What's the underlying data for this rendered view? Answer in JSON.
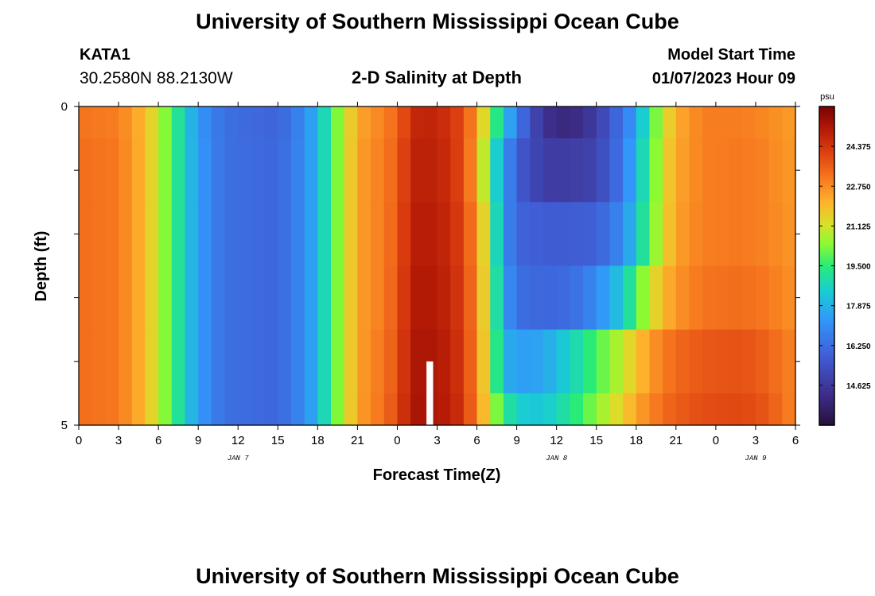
{
  "page": {
    "title": "University of Southern Mississippi Ocean Cube",
    "station": "KATA1",
    "coords": "30.2580N  88.2130W",
    "subtitle": "2-D Salinity at Depth",
    "model_start_label": "Model Start Time",
    "model_start_value": "01/07/2023 Hour 09",
    "footer_title": "University of Southern Mississippi Ocean Cube"
  },
  "colors": {
    "background": "#ffffff",
    "text": "#000000",
    "marker": "#ffffff"
  },
  "chart_data": {
    "type": "heatmap",
    "title": "2-D Salinity at Depth",
    "xlabel": "Forecast Time(Z)",
    "ylabel": "Depth (ft)",
    "x_unit": "hours since JAN 7 00Z",
    "xlim": [
      0,
      54
    ],
    "ylim": [
      0,
      5
    ],
    "y_reversed": true,
    "x_ticks": [
      {
        "x": 0,
        "label": "0"
      },
      {
        "x": 3,
        "label": "3"
      },
      {
        "x": 6,
        "label": "6"
      },
      {
        "x": 9,
        "label": "9"
      },
      {
        "x": 12,
        "label": "12"
      },
      {
        "x": 15,
        "label": "15"
      },
      {
        "x": 18,
        "label": "18"
      },
      {
        "x": 21,
        "label": "21"
      },
      {
        "x": 24,
        "label": "0"
      },
      {
        "x": 27,
        "label": "3"
      },
      {
        "x": 30,
        "label": "6"
      },
      {
        "x": 33,
        "label": "9"
      },
      {
        "x": 36,
        "label": "12"
      },
      {
        "x": 39,
        "label": "15"
      },
      {
        "x": 42,
        "label": "18"
      },
      {
        "x": 45,
        "label": "21"
      },
      {
        "x": 48,
        "label": "0"
      },
      {
        "x": 51,
        "label": "3"
      },
      {
        "x": 54,
        "label": "6"
      }
    ],
    "y_ticks": [
      {
        "y": 0,
        "label": "0"
      },
      {
        "y": 5,
        "label": "5"
      }
    ],
    "date_labels": [
      {
        "x": 12,
        "label": "JAN 7"
      },
      {
        "x": 36,
        "label": "JAN 8"
      },
      {
        "x": 51,
        "label": "JAN 9"
      }
    ],
    "colorbar": {
      "unit": "psu",
      "vmin": 13.0,
      "vmax": 26.0,
      "ticks": [
        "24.375",
        "22.750",
        "21.125",
        "19.500",
        "17.875",
        "16.250",
        "14.625"
      ],
      "tick_values": [
        24.375,
        22.75,
        21.125,
        19.5,
        17.875,
        16.25,
        14.625
      ]
    },
    "layers": [
      {
        "depth_top": 0.0,
        "depth_bottom": 0.5,
        "keyframes": [
          [
            0,
            23.2
          ],
          [
            3,
            23.0
          ],
          [
            5,
            22.0
          ],
          [
            7,
            19.8
          ],
          [
            8,
            18.5
          ],
          [
            9,
            17.3
          ],
          [
            11,
            16.3
          ],
          [
            15,
            16.0
          ],
          [
            17,
            17.0
          ],
          [
            18,
            18.0
          ],
          [
            19,
            19.6
          ],
          [
            20,
            21.0
          ],
          [
            21,
            22.3
          ],
          [
            23,
            23.0
          ],
          [
            24,
            23.4
          ],
          [
            25,
            24.6
          ],
          [
            26,
            24.9
          ],
          [
            28,
            24.5
          ],
          [
            29,
            23.8
          ],
          [
            30,
            22.6
          ],
          [
            31,
            20.2
          ],
          [
            32,
            18.5
          ],
          [
            33,
            16.6
          ],
          [
            35,
            14.4
          ],
          [
            37,
            14.0
          ],
          [
            39,
            14.8
          ],
          [
            41,
            16.5
          ],
          [
            42,
            17.5
          ],
          [
            43,
            19.5
          ],
          [
            44,
            21.0
          ],
          [
            45,
            22.2
          ],
          [
            47,
            23.0
          ],
          [
            50,
            23.0
          ],
          [
            52,
            22.8
          ],
          [
            53,
            22.6
          ],
          [
            54,
            22.5
          ]
        ]
      },
      {
        "depth_top": 0.5,
        "depth_bottom": 1.5,
        "keyframes": [
          [
            0,
            23.3
          ],
          [
            3,
            23.1
          ],
          [
            5,
            22.0
          ],
          [
            7,
            19.8
          ],
          [
            8,
            18.5
          ],
          [
            9,
            17.4
          ],
          [
            11,
            16.3
          ],
          [
            15,
            16.1
          ],
          [
            17,
            17.0
          ],
          [
            18,
            18.0
          ],
          [
            19,
            19.6
          ],
          [
            20,
            21.0
          ],
          [
            21,
            22.4
          ],
          [
            23,
            23.1
          ],
          [
            24,
            23.5
          ],
          [
            25,
            24.8
          ],
          [
            26,
            25.0
          ],
          [
            28,
            24.6
          ],
          [
            29,
            23.8
          ],
          [
            30,
            22.4
          ],
          [
            31,
            19.5
          ],
          [
            32,
            17.5
          ],
          [
            33,
            15.8
          ],
          [
            35,
            14.8
          ],
          [
            37,
            14.8
          ],
          [
            39,
            15.0
          ],
          [
            41,
            16.6
          ],
          [
            42,
            18.0
          ],
          [
            43,
            19.6
          ],
          [
            44,
            21.2
          ],
          [
            45,
            22.3
          ],
          [
            47,
            23.0
          ],
          [
            50,
            23.1
          ],
          [
            52,
            22.9
          ],
          [
            53,
            22.6
          ],
          [
            54,
            22.6
          ]
        ]
      },
      {
        "depth_top": 1.5,
        "depth_bottom": 2.5,
        "keyframes": [
          [
            0,
            23.3
          ],
          [
            3,
            23.1
          ],
          [
            5,
            22.0
          ],
          [
            7,
            19.8
          ],
          [
            8,
            18.5
          ],
          [
            9,
            17.4
          ],
          [
            11,
            16.3
          ],
          [
            15,
            16.1
          ],
          [
            17,
            17.0
          ],
          [
            18,
            18.0
          ],
          [
            19,
            19.6
          ],
          [
            20,
            21.0
          ],
          [
            21,
            22.4
          ],
          [
            23,
            23.1
          ],
          [
            24,
            23.6
          ],
          [
            25,
            24.9
          ],
          [
            26,
            25.1
          ],
          [
            28,
            24.7
          ],
          [
            29,
            24.0
          ],
          [
            30,
            22.7
          ],
          [
            31,
            20.3
          ],
          [
            32,
            17.2
          ],
          [
            33,
            16.0
          ],
          [
            35,
            15.8
          ],
          [
            37,
            15.8
          ],
          [
            39,
            15.9
          ],
          [
            41,
            17.0
          ],
          [
            42,
            18.4
          ],
          [
            43,
            19.8
          ],
          [
            44,
            21.3
          ],
          [
            45,
            22.4
          ],
          [
            47,
            23.0
          ],
          [
            50,
            23.1
          ],
          [
            52,
            22.9
          ],
          [
            53,
            22.7
          ],
          [
            54,
            22.6
          ]
        ]
      },
      {
        "depth_top": 2.5,
        "depth_bottom": 3.5,
        "keyframes": [
          [
            0,
            23.3
          ],
          [
            3,
            23.1
          ],
          [
            5,
            22.0
          ],
          [
            7,
            19.8
          ],
          [
            8,
            18.5
          ],
          [
            9,
            17.4
          ],
          [
            11,
            16.3
          ],
          [
            15,
            16.1
          ],
          [
            17,
            17.0
          ],
          [
            18,
            18.0
          ],
          [
            19,
            19.6
          ],
          [
            20,
            21.0
          ],
          [
            21,
            22.4
          ],
          [
            23,
            23.1
          ],
          [
            24,
            23.7
          ],
          [
            25,
            25.0
          ],
          [
            26,
            25.2
          ],
          [
            28,
            24.8
          ],
          [
            29,
            24.1
          ],
          [
            30,
            22.8
          ],
          [
            31,
            20.5
          ],
          [
            32,
            17.5
          ],
          [
            33,
            16.3
          ],
          [
            35,
            16.1
          ],
          [
            37,
            16.2
          ],
          [
            39,
            17.0
          ],
          [
            41,
            18.4
          ],
          [
            42,
            19.8
          ],
          [
            43,
            21.0
          ],
          [
            44,
            22.0
          ],
          [
            45,
            22.6
          ],
          [
            47,
            23.2
          ],
          [
            50,
            23.3
          ],
          [
            52,
            23.1
          ],
          [
            53,
            22.8
          ],
          [
            54,
            22.7
          ]
        ]
      },
      {
        "depth_top": 3.5,
        "depth_bottom": 4.5,
        "keyframes": [
          [
            0,
            23.3
          ],
          [
            3,
            23.1
          ],
          [
            5,
            22.0
          ],
          [
            7,
            19.8
          ],
          [
            8,
            18.5
          ],
          [
            9,
            17.4
          ],
          [
            11,
            16.3
          ],
          [
            15,
            16.1
          ],
          [
            17,
            17.0
          ],
          [
            18,
            18.0
          ],
          [
            19,
            19.6
          ],
          [
            20,
            21.0
          ],
          [
            21,
            22.4
          ],
          [
            23,
            23.2
          ],
          [
            24,
            23.8
          ],
          [
            25,
            25.1
          ],
          [
            26,
            25.3
          ],
          [
            28,
            24.9
          ],
          [
            29,
            24.2
          ],
          [
            30,
            22.9
          ],
          [
            31,
            20.6
          ],
          [
            32,
            18.0
          ],
          [
            33,
            17.4
          ],
          [
            35,
            17.6
          ],
          [
            37,
            18.6
          ],
          [
            39,
            19.8
          ],
          [
            41,
            21.0
          ],
          [
            42,
            21.8
          ],
          [
            43,
            22.5
          ],
          [
            44,
            23.0
          ],
          [
            45,
            23.4
          ],
          [
            47,
            23.7
          ],
          [
            50,
            23.8
          ],
          [
            52,
            23.5
          ],
          [
            53,
            23.1
          ],
          [
            54,
            22.9
          ]
        ]
      },
      {
        "depth_top": 4.5,
        "depth_bottom": 5.0,
        "keyframes": [
          [
            0,
            23.3
          ],
          [
            3,
            23.1
          ],
          [
            5,
            22.0
          ],
          [
            7,
            19.8
          ],
          [
            8,
            18.5
          ],
          [
            9,
            17.4
          ],
          [
            11,
            16.3
          ],
          [
            15,
            16.1
          ],
          [
            17,
            17.0
          ],
          [
            18,
            18.0
          ],
          [
            19,
            19.6
          ],
          [
            20,
            21.0
          ],
          [
            21,
            22.4
          ],
          [
            23,
            23.3
          ],
          [
            24,
            23.9
          ],
          [
            25,
            25.2
          ],
          [
            26,
            25.3
          ],
          [
            28,
            25.0
          ],
          [
            29,
            24.3
          ],
          [
            30,
            23.0
          ],
          [
            31,
            21.0
          ],
          [
            32,
            19.5
          ],
          [
            33,
            18.5
          ],
          [
            35,
            18.3
          ],
          [
            37,
            19.2
          ],
          [
            39,
            20.4
          ],
          [
            41,
            21.6
          ],
          [
            42,
            22.3
          ],
          [
            43,
            22.9
          ],
          [
            44,
            23.3
          ],
          [
            45,
            23.6
          ],
          [
            47,
            23.9
          ],
          [
            50,
            24.0
          ],
          [
            52,
            23.7
          ],
          [
            53,
            23.2
          ],
          [
            54,
            22.9
          ]
        ]
      }
    ],
    "marker": {
      "x_start": 26.2,
      "x_end": 26.7,
      "depth_top": 4.0,
      "depth_bottom": 5.0
    }
  }
}
